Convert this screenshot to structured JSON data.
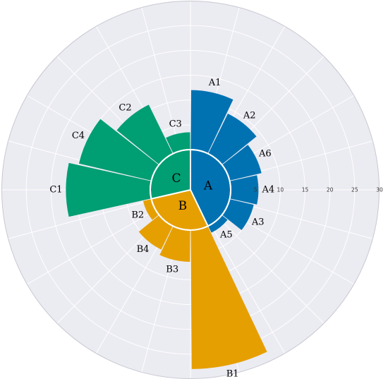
{
  "chart_data": {
    "type": "polar-bar",
    "radial_axis": {
      "min": 0,
      "max": 30,
      "ticks": [
        5,
        10,
        15,
        20,
        25,
        30
      ]
    },
    "grid": true,
    "groups": [
      {
        "name": "A",
        "color": "#0072b2",
        "segments": [
          {
            "label": "A1",
            "value": 12.0
          },
          {
            "label": "A2",
            "value": 9.0
          },
          {
            "label": "A6",
            "value": 6.6
          },
          {
            "label": "A4",
            "value": 5.6
          },
          {
            "label": "A3",
            "value": 5.0
          },
          {
            "label": "A5",
            "value": 1.5
          }
        ]
      },
      {
        "name": "B",
        "color": "#e69f00",
        "segments": [
          {
            "label": "B1",
            "value": 28.0
          },
          {
            "label": "B3",
            "value": 6.4
          },
          {
            "label": "B4",
            "value": 5.3
          },
          {
            "label": "B2",
            "value": 1.7
          }
        ]
      },
      {
        "name": "C",
        "color": "#009e73",
        "segments": [
          {
            "label": "C1",
            "value": 17.0
          },
          {
            "label": "C4",
            "value": 15.0
          },
          {
            "label": "C2",
            "value": 11.0
          },
          {
            "label": "C3",
            "value": 3.5
          }
        ]
      }
    ]
  }
}
